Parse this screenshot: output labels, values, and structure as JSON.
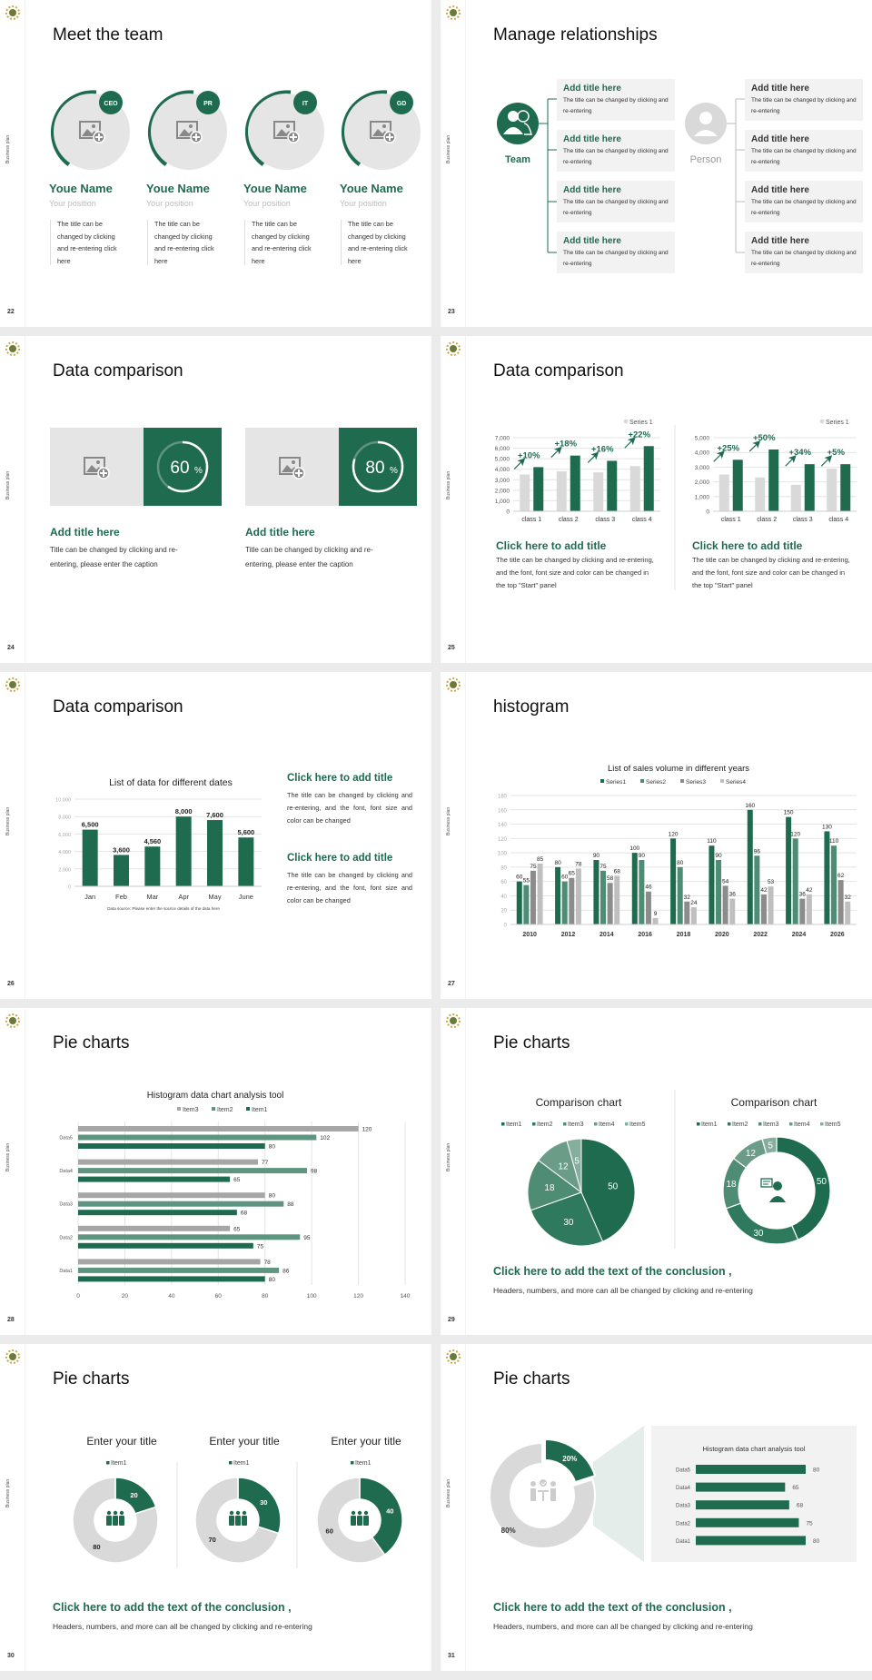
{
  "side_label": "Business plan",
  "colors": {
    "green": "#1f6b4f",
    "green2": "#4d8c75",
    "gray": "#d9d9d9",
    "darkgray": "#8c8c8c",
    "lightgray": "#bfbfbf",
    "panel": "#f2f2f2"
  },
  "slides": {
    "s22": {
      "number": "22",
      "title": "Meet the team",
      "members": [
        {
          "badge": "CEO",
          "name": "Youe Name",
          "position": "Your position",
          "desc": "The title can be changed by clicking and re-entering click here"
        },
        {
          "badge": "PR",
          "name": "Youe Name",
          "position": "Your position",
          "desc": "The title can be changed by clicking and re-entering click here"
        },
        {
          "badge": "IT",
          "name": "Youe Name",
          "position": "Your position",
          "desc": "The title can be changed by clicking and re-entering click here"
        },
        {
          "badge": "GD",
          "name": "Youe Name",
          "position": "Your position",
          "desc": "The title can be changed by clicking and re-entering click here"
        }
      ]
    },
    "s23": {
      "number": "23",
      "title": "Manage relationships",
      "left_label": "Team",
      "right_label": "Person",
      "left_items": [
        {
          "title": "Add title here",
          "desc": "The title can be changed by clicking and re-entering"
        },
        {
          "title": "Add title here",
          "desc": "The title can be changed by clicking and re-entering"
        },
        {
          "title": "Add title here",
          "desc": "The title can be changed by clicking and re-entering"
        },
        {
          "title": "Add title here",
          "desc": "The title can be changed by clicking and re-entering"
        }
      ],
      "right_items": [
        {
          "title": "Add title here",
          "desc": "The title can be changed by clicking and re-entering"
        },
        {
          "title": "Add title here",
          "desc": "The title can be changed by clicking and re-entering"
        },
        {
          "title": "Add title here",
          "desc": "The title can be changed by clicking and re-entering"
        },
        {
          "title": "Add title here",
          "desc": "The title can be changed by clicking and re-entering"
        }
      ]
    },
    "s24": {
      "number": "24",
      "title": "Data comparison",
      "panels": [
        {
          "percent": 60,
          "value": "60",
          "unit": "%",
          "title": "Add title here",
          "desc": "Title can be changed by clicking and re-entering, please enter the caption"
        },
        {
          "percent": 80,
          "value": "80",
          "unit": "%",
          "title": "Add title here",
          "desc": "Title can be changed by clicking and re-entering, please enter the caption"
        }
      ]
    },
    "s25": {
      "number": "25",
      "title": "Data comparison",
      "blocks": [
        {
          "title": "Click here to add title",
          "desc": "The title can be changed by clicking and re-entering, and the font, font size and color can be changed in the top \"Start\" panel"
        },
        {
          "title": "Click here to add title",
          "desc": "The title can be changed by clicking and re-entering, and the font, font size and color can be changed in the top \"Start\" panel"
        }
      ]
    },
    "s26": {
      "number": "26",
      "title": "Data comparison",
      "blocks": [
        {
          "title": "Click here to add title",
          "desc": "The title can be changed by clicking and re-entering, and the font, font size and color can be changed"
        },
        {
          "title": "Click here to add title",
          "desc": "The title can be changed by clicking and re-entering, and the font, font size and color can be changed"
        }
      ]
    },
    "s27": {
      "number": "27",
      "title": "histogram"
    },
    "s28": {
      "number": "28",
      "title": "Pie charts"
    },
    "s29": {
      "number": "29",
      "title": "Pie charts",
      "conclusion": "Click here to add the text of the conclusion ,",
      "conclusion_desc": "Headers, numbers, and more can all be changed by clicking and re-entering"
    },
    "s30": {
      "number": "30",
      "title": "Pie charts",
      "conclusion": "Click here to add the text of the conclusion ,",
      "conclusion_desc": "Headers, numbers, and more can all be changed by clicking and re-entering"
    },
    "s31": {
      "number": "31",
      "title": "Pie charts",
      "conclusion": "Click here to add the text of the conclusion ,",
      "conclusion_desc": "Headers, numbers, and more can all be changed by clicking and re-entering"
    }
  },
  "chart_data": [
    {
      "id": "c25a",
      "type": "bar",
      "categories": [
        "class 1",
        "class 2",
        "class 3",
        "class 4"
      ],
      "series": [
        {
          "name": "Series 1",
          "values": [
            3500,
            3800,
            3700,
            4300
          ]
        },
        {
          "values": [
            4200,
            5300,
            4800,
            6200
          ]
        }
      ],
      "annotations": [
        "+10%",
        "+18%",
        "+16%",
        "+22%"
      ],
      "ylim": [
        0,
        7000
      ],
      "yticks": [
        "0",
        "1,000",
        "2,000",
        "3,000",
        "4,000",
        "5,000",
        "6,000",
        "7,000"
      ],
      "legend": "top-right",
      "grid": true
    },
    {
      "id": "c25b",
      "type": "bar",
      "categories": [
        "class 1",
        "class 2",
        "class 3",
        "class 4"
      ],
      "series": [
        {
          "name": "Series 1",
          "values": [
            2500,
            2300,
            1800,
            2900
          ]
        },
        {
          "values": [
            3500,
            4200,
            3200,
            3200
          ]
        }
      ],
      "annotations": [
        "+25%",
        "+50%",
        "+34%",
        "+5%"
      ],
      "ylim": [
        0,
        5000
      ],
      "yticks": [
        "0",
        "1,000",
        "2,000",
        "3,000",
        "4,000",
        "5,000"
      ],
      "legend": "top-right",
      "grid": true
    },
    {
      "id": "c26",
      "type": "bar",
      "title": "List of data for different dates",
      "categories": [
        "Jan",
        "Feb",
        "Mar",
        "Apr",
        "May",
        "June"
      ],
      "values": [
        6500,
        3600,
        4560,
        8000,
        7600,
        5600
      ],
      "value_labels": [
        "6,500",
        "3,600",
        "4,560",
        "8,000",
        "7,600",
        "5,600"
      ],
      "ylim": [
        0,
        10000
      ],
      "yticks": [
        "0",
        "2,000",
        "4,000",
        "6,000",
        "8,000",
        "10,000"
      ],
      "source": "Data source: Please enter the source details of the data here",
      "grid": true
    },
    {
      "id": "c27",
      "type": "bar",
      "title": "List of sales volume in different years",
      "categories": [
        "2010",
        "2012",
        "2014",
        "2016",
        "2018",
        "2020",
        "2022",
        "2024",
        "2026"
      ],
      "series": [
        {
          "name": "Series1",
          "values": [
            60,
            80,
            90,
            100,
            120,
            110,
            160,
            150,
            130
          ]
        },
        {
          "name": "Series2",
          "values": [
            55,
            60,
            75,
            90,
            80,
            90,
            96,
            120,
            110
          ]
        },
        {
          "name": "Series3",
          "values": [
            75,
            65,
            58,
            46,
            32,
            54,
            42,
            36,
            62
          ]
        },
        {
          "name": "Series4",
          "values": [
            85,
            78,
            68,
            9,
            24,
            36,
            53,
            42,
            32
          ]
        }
      ],
      "ylim": [
        0,
        180
      ],
      "yticks": [
        "0",
        "20",
        "40",
        "60",
        "80",
        "100",
        "120",
        "140",
        "160",
        "180"
      ],
      "legend": "top",
      "grid": true
    },
    {
      "id": "c28",
      "type": "bar",
      "orientation": "horizontal",
      "title": "Histogram data chart analysis tool",
      "categories": [
        "Data5",
        "Data4",
        "Data3",
        "Data2",
        "Data1"
      ],
      "series": [
        {
          "name": "Item3",
          "values": [
            120,
            77,
            80,
            65,
            78
          ]
        },
        {
          "name": "Item2",
          "values": [
            102,
            98,
            88,
            95,
            86
          ]
        },
        {
          "name": "Item1",
          "values": [
            80,
            65,
            68,
            75,
            80
          ]
        }
      ],
      "xlim": [
        0,
        140
      ],
      "xticks": [
        "0",
        "20",
        "40",
        "60",
        "80",
        "100",
        "120",
        "140"
      ],
      "legend": "top",
      "grid": true
    },
    {
      "id": "c29a",
      "type": "pie",
      "title": "Comparison chart",
      "labels": [
        "Item1",
        "Item2",
        "Item3",
        "Item4",
        "Item5"
      ],
      "values": [
        50,
        30,
        18,
        12,
        5
      ],
      "legend": "top"
    },
    {
      "id": "c29b",
      "type": "pie",
      "donut": true,
      "title": "Comparison chart",
      "labels": [
        "Item1",
        "Item2",
        "Item3",
        "Item4",
        "Item5"
      ],
      "values": [
        50,
        30,
        18,
        12,
        5
      ],
      "legend": "top"
    },
    {
      "id": "c30a",
      "type": "pie",
      "donut": true,
      "title": "Enter your title",
      "labels": [
        "Item1",
        ""
      ],
      "values": [
        20,
        80
      ],
      "legend": "top"
    },
    {
      "id": "c30b",
      "type": "pie",
      "donut": true,
      "title": "Enter your title",
      "labels": [
        "Item1",
        ""
      ],
      "values": [
        30,
        70
      ],
      "legend": "top"
    },
    {
      "id": "c30c",
      "type": "pie",
      "donut": true,
      "title": "Enter your title",
      "labels": [
        "Item1",
        ""
      ],
      "values": [
        40,
        60
      ],
      "legend": "top"
    },
    {
      "id": "c31a",
      "type": "pie",
      "donut": true,
      "values": [
        20,
        80
      ],
      "value_labels": [
        "20%",
        "80%"
      ]
    },
    {
      "id": "c31b",
      "type": "bar",
      "orientation": "horizontal",
      "title": "Histogram data chart analysis tool",
      "categories": [
        "Data5",
        "Data4",
        "Data3",
        "Data2",
        "Data1"
      ],
      "values": [
        80,
        65,
        68,
        75,
        80
      ],
      "xlim": [
        0,
        80
      ]
    }
  ]
}
